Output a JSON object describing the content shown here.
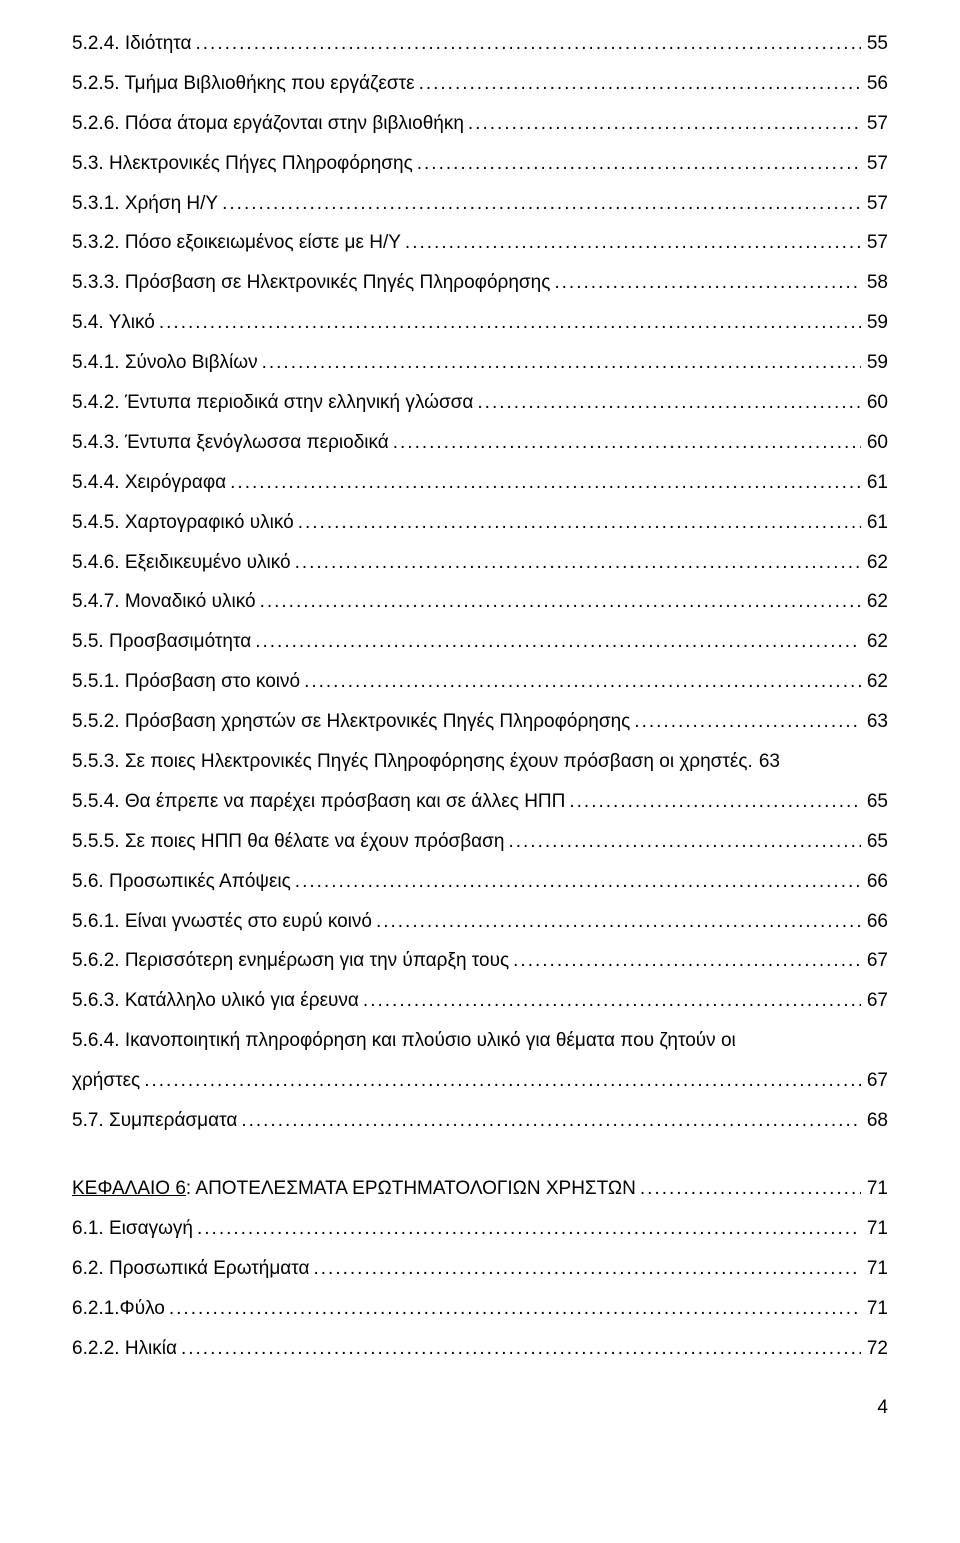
{
  "toc": [
    {
      "label": "5.2.4. Ιδιότητα",
      "page": "55"
    },
    {
      "label": "5.2.5. Τμήμα Βιβλιοθήκης που εργάζεστε",
      "page": "56"
    },
    {
      "label": "5.2.6. Πόσα άτομα εργάζονται στην βιβλιοθήκη",
      "page": "57"
    },
    {
      "label": "5.3. Ηλεκτρονικές Πήγες Πληροφόρησης",
      "page": "57"
    },
    {
      "label": "5.3.1. Χρήση Η/Υ",
      "page": "57"
    },
    {
      "label": "5.3.2. Πόσο εξοικειωμένος είστε με Η/Υ",
      "page": "57"
    },
    {
      "label": "5.3.3. Πρόσβαση σε Ηλεκτρονικές Πηγές Πληροφόρησης",
      "page": "58"
    },
    {
      "label": "5.4. Υλικό",
      "page": "59"
    },
    {
      "label": "5.4.1. Σύνολο Βιβλίων",
      "page": "59"
    },
    {
      "label": "5.4.2. Έντυπα περιοδικά στην ελληνική γλώσσα",
      "page": "60"
    },
    {
      "label": "5.4.3. Έντυπα ξενόγλωσσα περιοδικά",
      "page": "60"
    },
    {
      "label": "5.4.4. Χειρόγραφα",
      "page": "61"
    },
    {
      "label": "5.4.5. Χαρτογραφικό υλικό",
      "page": "61"
    },
    {
      "label": "5.4.6. Εξειδικευμένο υλικό",
      "page": "62"
    },
    {
      "label": "5.4.7. Μοναδικό υλικό",
      "page": "62"
    },
    {
      "label": "5.5. Προσβασιμότητα",
      "page": "62"
    },
    {
      "label": "5.5.1. Πρόσβαση στο κοινό",
      "page": "62"
    },
    {
      "label": "5.5.2. Πρόσβαση χρηστών σε Ηλεκτρονικές Πηγές Πληροφόρησης",
      "page": "63"
    },
    {
      "label": "5.5.3. Σε ποιες Ηλεκτρονικές Πηγές Πληροφόρησης έχουν πρόσβαση οι χρηστές.",
      "page": "63",
      "nodots": true
    },
    {
      "label": "5.5.4. Θα έπρεπε να παρέχει πρόσβαση και σε άλλες ΗΠΠ",
      "page": "65"
    },
    {
      "label": "5.5.5. Σε ποιες ΗΠΠ θα θέλατε να έχουν πρόσβαση",
      "page": "65"
    },
    {
      "label": "5.6. Προσωπικές Απόψεις",
      "page": "66"
    },
    {
      "label": "5.6.1. Είναι γνωστές στο ευρύ κοινό",
      "page": "66"
    },
    {
      "label": "5.6.2. Περισσότερη ενημέρωση για την ύπαρξη τους",
      "page": "67"
    },
    {
      "label": "5.6.3. Κατάλληλο υλικό για έρευνα",
      "page": "67"
    },
    {
      "label": "5.6.4. Ικανοποιητική πληροφόρηση και πλούσιο υλικό για θέματα που ζητούν οι",
      "page": "",
      "nodots": true,
      "nopage": true
    },
    {
      "label": "χρήστες",
      "page": "67"
    },
    {
      "label": "5.7. Συμπεράσματα",
      "page": "68"
    }
  ],
  "chapter": {
    "heading_underline": "ΚΕΦΑΛΑΙΟ 6",
    "heading_rest": ": ΑΠΟΤΕΛΕΣΜΑΤΑ ΕΡΩΤΗΜΑΤΟΛΟΓΙΩΝ ΧΡΗΣΤΩΝ",
    "page": "71",
    "entries": [
      {
        "label": "6.1. Εισαγωγή",
        "page": "71"
      },
      {
        "label": "6.2. Προσωπικά Ερωτήματα",
        "page": "71"
      },
      {
        "label": "6.2.1.Φύλο",
        "page": "71"
      },
      {
        "label": "6.2.2. Ηλικία",
        "page": "72"
      }
    ]
  },
  "page_number": "4",
  "colors": {
    "text": "#000000",
    "background": "#ffffff"
  },
  "typography": {
    "font_family": "Arial",
    "font_size_pt": 14,
    "line_height": 2.1
  }
}
